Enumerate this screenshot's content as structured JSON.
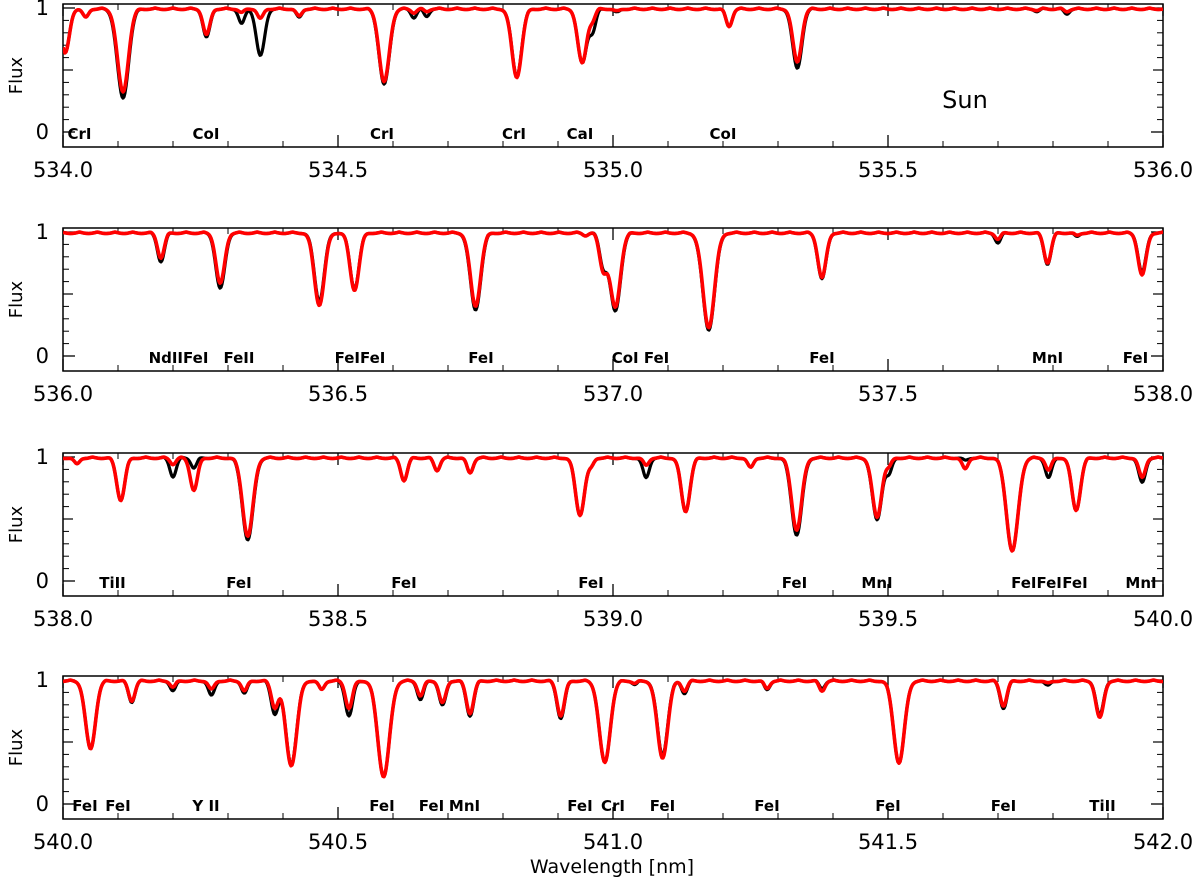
{
  "figure": {
    "star_label": "Sun",
    "xlabel": "Wavelength [nm]",
    "ylabel": "Flux",
    "colors": {
      "observed": "#000000",
      "model": "#ff0000"
    }
  },
  "chart_data": [
    {
      "type": "line",
      "xlim": [
        534.0,
        536.0
      ],
      "ylim": [
        0,
        1
      ],
      "xticks": [
        "534.0",
        "534.5",
        "535.0",
        "535.5",
        "536.0"
      ],
      "yticks": [
        "0",
        "1"
      ],
      "series": [
        {
          "lines": [
            [
              534.004,
              0.36
            ],
            [
              534.041,
              0.07
            ],
            [
              534.109,
              0.72
            ],
            [
              534.261,
              0.23
            ],
            [
              534.325,
              0.12
            ],
            [
              534.359,
              0.38
            ],
            [
              534.429,
              0.07
            ],
            [
              534.584,
              0.61
            ],
            [
              534.638,
              0.07
            ],
            [
              534.661,
              0.06
            ],
            [
              534.825,
              0.54
            ],
            [
              534.944,
              0.44
            ],
            [
              534.963,
              0.17
            ],
            [
              535.007,
              0.03
            ],
            [
              535.211,
              0.14
            ],
            [
              535.335,
              0.48
            ],
            [
              535.771,
              0.02
            ],
            [
              535.825,
              0.04
            ]
          ]
        },
        {
          "lines": [
            [
              534.004,
              0.36
            ],
            [
              534.041,
              0.07
            ],
            [
              534.109,
              0.67
            ],
            [
              534.261,
              0.21
            ],
            [
              534.325,
              0.03
            ],
            [
              534.359,
              0.08
            ],
            [
              534.429,
              0.06
            ],
            [
              534.584,
              0.59
            ],
            [
              534.638,
              0.03
            ],
            [
              534.661,
              0.02
            ],
            [
              534.825,
              0.55
            ],
            [
              534.944,
              0.44
            ],
            [
              534.963,
              0.08
            ],
            [
              535.007,
              0.02
            ],
            [
              535.211,
              0.14
            ],
            [
              535.335,
              0.43
            ],
            [
              535.771,
              0.01
            ],
            [
              535.825,
              0.02
            ]
          ]
        }
      ],
      "labels": [
        {
          "x": 534.03,
          "text": "CrI"
        },
        {
          "x": 534.26,
          "text": "CoI"
        },
        {
          "x": 534.58,
          "text": "CrI"
        },
        {
          "x": 534.82,
          "text": "CrI"
        },
        {
          "x": 534.94,
          "text": "CaI"
        },
        {
          "x": 535.2,
          "text": "CoI"
        }
      ],
      "star_label": "Sun"
    },
    {
      "type": "line",
      "xlim": [
        536.0,
        538.0
      ],
      "ylim": [
        0,
        1
      ],
      "xticks": [
        "536.0",
        "536.5",
        "537.0",
        "537.5",
        "538.0"
      ],
      "yticks": [
        "0",
        "1"
      ],
      "series": [
        {
          "lines": [
            [
              536.178,
              0.23
            ],
            [
              536.286,
              0.45
            ],
            [
              536.466,
              0.55
            ],
            [
              536.53,
              0.45
            ],
            [
              536.75,
              0.62
            ],
            [
              536.95,
              0.02
            ],
            [
              536.982,
              0.25
            ],
            [
              537.004,
              0.63
            ],
            [
              537.174,
              0.78
            ],
            [
              537.38,
              0.37
            ],
            [
              537.7,
              0.08
            ],
            [
              537.79,
              0.25
            ],
            [
              537.843,
              0.03
            ],
            [
              537.962,
              0.32
            ]
          ]
        },
        {
          "lines": [
            [
              536.178,
              0.2
            ],
            [
              536.286,
              0.41
            ],
            [
              536.466,
              0.58
            ],
            [
              536.53,
              0.46
            ],
            [
              536.75,
              0.59
            ],
            [
              536.95,
              0.02
            ],
            [
              536.982,
              0.28
            ],
            [
              537.004,
              0.6
            ],
            [
              537.174,
              0.76
            ],
            [
              537.38,
              0.36
            ],
            [
              537.7,
              0.05
            ],
            [
              537.79,
              0.24
            ],
            [
              537.843,
              0.02
            ],
            [
              537.962,
              0.34
            ]
          ]
        }
      ],
      "labels": [
        {
          "x": 536.21,
          "text": "NdIIFeI"
        },
        {
          "x": 536.32,
          "text": "FeII"
        },
        {
          "x": 536.54,
          "text": "FeIFeI"
        },
        {
          "x": 536.76,
          "text": "FeI"
        },
        {
          "x": 537.05,
          "text": "CoI FeI"
        },
        {
          "x": 537.38,
          "text": "FeI"
        },
        {
          "x": 537.79,
          "text": "MnI"
        },
        {
          "x": 537.95,
          "text": "FeI"
        }
      ]
    },
    {
      "type": "line",
      "xlim": [
        538.0,
        540.0
      ],
      "ylim": [
        0,
        1
      ],
      "xticks": [
        "538.0",
        "538.5",
        "539.0",
        "539.5",
        "540.0"
      ],
      "yticks": [
        "0",
        "1"
      ],
      "series": [
        {
          "lines": [
            [
              538.025,
              0.05
            ],
            [
              538.105,
              0.34
            ],
            [
              538.2,
              0.15
            ],
            [
              538.238,
              0.08
            ],
            [
              538.336,
              0.66
            ],
            [
              538.62,
              0.18
            ],
            [
              538.68,
              0.1
            ],
            [
              538.74,
              0.12
            ],
            [
              538.94,
              0.46
            ],
            [
              538.96,
              0.06
            ],
            [
              539.06,
              0.16
            ],
            [
              539.132,
              0.43
            ],
            [
              539.25,
              0.08
            ],
            [
              539.334,
              0.62
            ],
            [
              539.48,
              0.5
            ],
            [
              539.502,
              0.12
            ],
            [
              539.64,
              0.02
            ],
            [
              539.726,
              0.75
            ],
            [
              539.792,
              0.16
            ],
            [
              539.842,
              0.42
            ],
            [
              539.962,
              0.2
            ]
          ]
        },
        {
          "lines": [
            [
              538.025,
              0.05
            ],
            [
              538.105,
              0.34
            ],
            [
              538.2,
              0.05
            ],
            [
              538.238,
              0.26
            ],
            [
              538.336,
              0.63
            ],
            [
              538.62,
              0.18
            ],
            [
              538.68,
              0.1
            ],
            [
              538.74,
              0.12
            ],
            [
              538.94,
              0.46
            ],
            [
              538.96,
              0.06
            ],
            [
              539.06,
              0.06
            ],
            [
              539.132,
              0.43
            ],
            [
              539.25,
              0.08
            ],
            [
              539.334,
              0.58
            ],
            [
              539.48,
              0.48
            ],
            [
              539.502,
              0.06
            ],
            [
              539.64,
              0.09
            ],
            [
              539.726,
              0.75
            ],
            [
              539.792,
              0.1
            ],
            [
              539.842,
              0.42
            ],
            [
              539.962,
              0.16
            ]
          ]
        }
      ],
      "labels": [
        {
          "x": 538.09,
          "text": "TiII"
        },
        {
          "x": 538.32,
          "text": "FeI"
        },
        {
          "x": 538.62,
          "text": "FeI"
        },
        {
          "x": 538.96,
          "text": "FeI"
        },
        {
          "x": 539.33,
          "text": "FeI"
        },
        {
          "x": 539.48,
          "text": "MnI"
        },
        {
          "x": 539.77,
          "text": "FeIFeI"
        },
        {
          "x": 539.84,
          "text": "FeI"
        },
        {
          "x": 539.96,
          "text": "MnI"
        }
      ]
    },
    {
      "type": "line",
      "xlim": [
        540.0,
        542.0
      ],
      "ylim": [
        0,
        1
      ],
      "xticks": [
        "540.0",
        "540.5",
        "541.0",
        "541.5",
        "542.0"
      ],
      "yticks": [
        "0",
        "1"
      ],
      "series": [
        {
          "lines": [
            [
              540.05,
              0.55
            ],
            [
              540.125,
              0.17
            ],
            [
              540.2,
              0.08
            ],
            [
              540.27,
              0.12
            ],
            [
              540.33,
              0.1
            ],
            [
              540.385,
              0.26
            ],
            [
              540.415,
              0.67
            ],
            [
              540.47,
              0.07
            ],
            [
              540.52,
              0.28
            ],
            [
              540.583,
              0.77
            ],
            [
              540.65,
              0.15
            ],
            [
              540.69,
              0.2
            ],
            [
              540.74,
              0.28
            ],
            [
              540.905,
              0.3
            ],
            [
              540.985,
              0.66
            ],
            [
              541.04,
              0.03
            ],
            [
              541.09,
              0.6
            ],
            [
              541.13,
              0.1
            ],
            [
              541.28,
              0.07
            ],
            [
              541.38,
              0.06
            ],
            [
              541.52,
              0.66
            ],
            [
              541.71,
              0.22
            ],
            [
              541.79,
              0.04
            ],
            [
              541.885,
              0.28
            ]
          ]
        },
        {
          "lines": [
            [
              540.05,
              0.55
            ],
            [
              540.125,
              0.16
            ],
            [
              540.2,
              0.05
            ],
            [
              540.27,
              0.07
            ],
            [
              540.33,
              0.08
            ],
            [
              540.385,
              0.21
            ],
            [
              540.415,
              0.68
            ],
            [
              540.47,
              0.07
            ],
            [
              540.52,
              0.22
            ],
            [
              540.583,
              0.77
            ],
            [
              540.65,
              0.12
            ],
            [
              540.69,
              0.18
            ],
            [
              540.74,
              0.26
            ],
            [
              540.905,
              0.28
            ],
            [
              540.985,
              0.66
            ],
            [
              541.04,
              0.02
            ],
            [
              541.09,
              0.62
            ],
            [
              541.13,
              0.08
            ],
            [
              541.28,
              0.06
            ],
            [
              541.38,
              0.08
            ],
            [
              541.52,
              0.66
            ],
            [
              541.71,
              0.2
            ],
            [
              541.79,
              0.02
            ],
            [
              541.885,
              0.3
            ]
          ]
        }
      ],
      "labels": [
        {
          "x": 540.04,
          "text": "FeI"
        },
        {
          "x": 540.1,
          "text": "FeI"
        },
        {
          "x": 540.26,
          "text": "Y II"
        },
        {
          "x": 540.58,
          "text": "FeI"
        },
        {
          "x": 540.67,
          "text": "FeI"
        },
        {
          "x": 540.73,
          "text": "MnI"
        },
        {
          "x": 540.94,
          "text": "FeI"
        },
        {
          "x": 541.0,
          "text": "CrI"
        },
        {
          "x": 541.09,
          "text": "FeI"
        },
        {
          "x": 541.28,
          "text": "FeI"
        },
        {
          "x": 541.5,
          "text": "FeI"
        },
        {
          "x": 541.71,
          "text": "FeI"
        },
        {
          "x": 541.89,
          "text": "TiII"
        }
      ]
    }
  ]
}
